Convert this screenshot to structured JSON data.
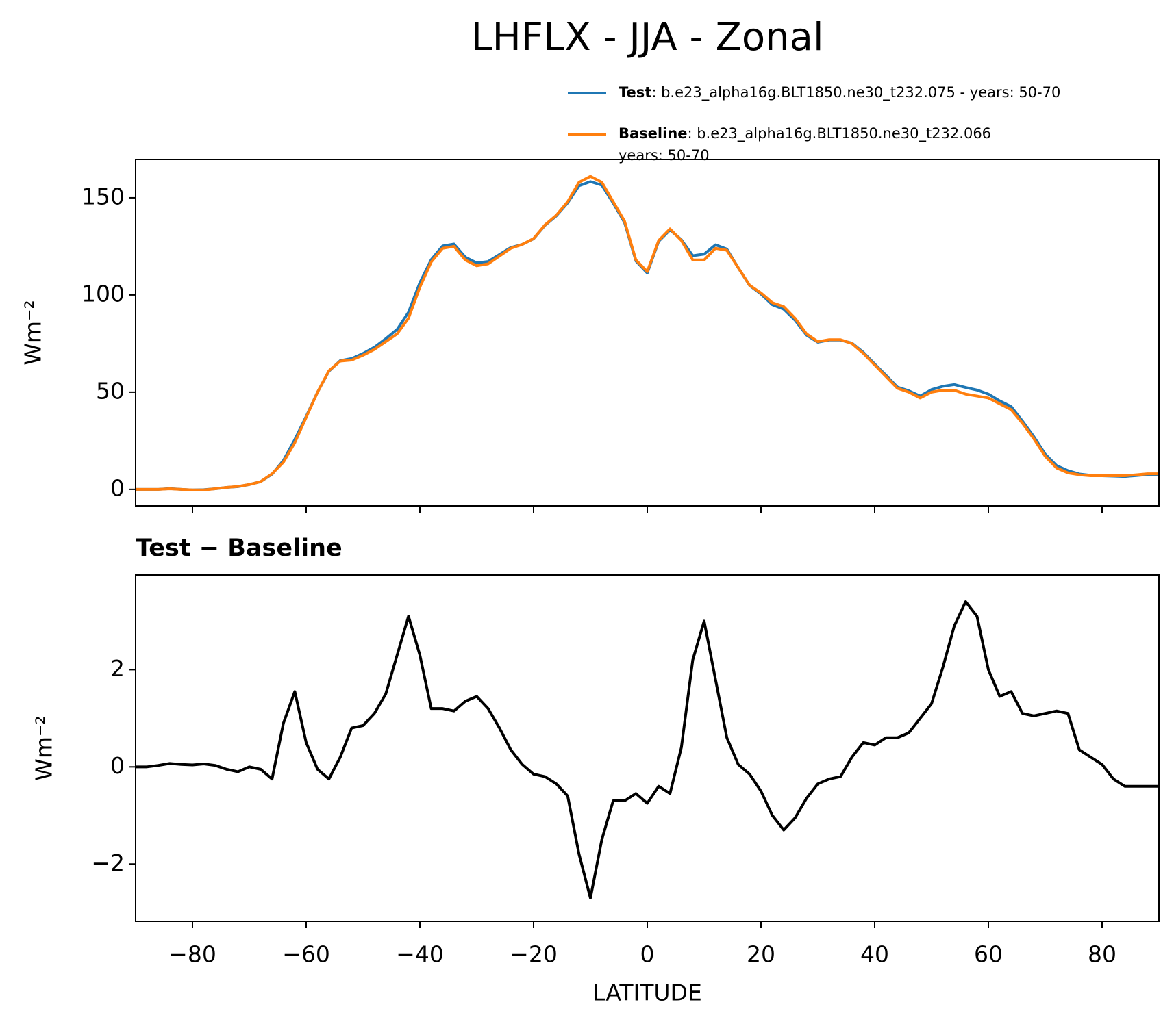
{
  "chart_data": [
    {
      "type": "line",
      "title": "LHFLX - JJA - Zonal",
      "ylabel": "Wm⁻²",
      "x": [
        -90,
        -88,
        -86,
        -84,
        -82,
        -80,
        -78,
        -76,
        -74,
        -72,
        -70,
        -68,
        -66,
        -64,
        -62,
        -60,
        -58,
        -56,
        -54,
        -52,
        -50,
        -48,
        -46,
        -44,
        -42,
        -40,
        -38,
        -36,
        -34,
        -32,
        -30,
        -28,
        -26,
        -24,
        -22,
        -20,
        -18,
        -16,
        -14,
        -12,
        -10,
        -8,
        -6,
        -4,
        -2,
        0,
        2,
        4,
        6,
        8,
        10,
        12,
        14,
        16,
        18,
        20,
        22,
        24,
        26,
        28,
        30,
        32,
        34,
        36,
        38,
        40,
        42,
        44,
        46,
        48,
        50,
        52,
        54,
        56,
        58,
        60,
        62,
        64,
        66,
        68,
        70,
        72,
        74,
        76,
        78,
        80,
        82,
        84,
        86,
        88,
        90
      ],
      "series": [
        {
          "name": "Test",
          "description": [
            ": b.e23_alpha16g.BLT1850.ne30_t232.075 - years: 50-70"
          ],
          "color": "#1f77b4",
          "values": [
            0,
            0,
            0,
            0.4,
            0,
            -0.3,
            -0.2,
            0.3,
            1,
            1.4,
            2.5,
            4,
            7.8,
            14.9,
            25.6,
            37.5,
            50,
            60.8,
            66.2,
            67.3,
            69.9,
            73.1,
            77.5,
            82.3,
            91.1,
            106.3,
            118.2,
            125.2,
            126.2,
            119.4,
            116.5,
            117.2,
            120.8,
            124.4,
            126,
            128.9,
            135.8,
            140.7,
            147.4,
            156.2,
            158.3,
            156.5,
            147.3,
            137.3,
            117.5,
            111.3,
            127.6,
            133.5,
            128.4,
            120.2,
            121,
            125.8,
            123.6,
            114,
            104.9,
            100.5,
            95,
            92.7,
            87,
            79.4,
            75.7,
            76.8,
            76.8,
            75.2,
            70.5,
            64.5,
            58.6,
            52.6,
            50.7,
            48,
            51.3,
            53,
            53.9,
            52.4,
            51.1,
            49,
            45.5,
            42.6,
            35.1,
            27.1,
            18.1,
            12.2,
            9.6,
            7.9,
            7.2,
            7,
            6.8,
            6.6,
            7.1,
            7.6,
            7.6
          ]
        },
        {
          "name": "Baseline",
          "description": [
            ": b.e23_alpha16g.BLT1850.ne30_t232.066",
            "years: 50-70"
          ],
          "color": "#ff7f0e",
          "values": [
            0,
            0,
            0,
            0.3,
            0,
            -0.3,
            -0.3,
            0.3,
            1,
            1.5,
            2.5,
            4,
            8,
            14,
            24,
            37,
            50,
            61,
            66,
            66.5,
            69,
            72,
            76,
            80,
            88,
            104,
            117,
            124,
            125,
            118,
            115,
            116,
            120,
            124,
            126,
            129,
            136,
            141,
            148,
            158,
            161,
            158,
            148,
            138,
            118,
            112,
            128,
            134,
            128,
            118,
            118,
            124,
            123,
            114,
            105,
            101,
            96,
            94,
            88,
            80,
            76,
            77,
            77,
            75,
            70,
            64,
            58,
            52,
            50,
            47,
            50,
            51,
            51,
            49,
            48,
            47,
            44,
            41,
            34,
            26,
            17,
            11,
            8.5,
            7.5,
            7,
            7,
            7,
            7,
            7.5,
            8,
            8
          ]
        }
      ],
      "xlim": [
        -90,
        90
      ],
      "xticks": [
        -80,
        -60,
        -40,
        -20,
        0,
        20,
        40,
        60,
        80
      ],
      "ylim": [
        -8.5,
        169.7
      ],
      "yticks": [
        0,
        50,
        100,
        150
      ]
    },
    {
      "type": "line",
      "title": "Test − Baseline",
      "xlabel": "LATITUDE",
      "ylabel": "Wm⁻²",
      "x": [
        -90,
        -88,
        -86,
        -84,
        -82,
        -80,
        -78,
        -76,
        -74,
        -72,
        -70,
        -68,
        -66,
        -64,
        -62,
        -60,
        -58,
        -56,
        -54,
        -52,
        -50,
        -48,
        -46,
        -44,
        -42,
        -40,
        -38,
        -36,
        -34,
        -32,
        -30,
        -28,
        -26,
        -24,
        -22,
        -20,
        -18,
        -16,
        -14,
        -12,
        -10,
        -8,
        -6,
        -4,
        -2,
        0,
        2,
        4,
        6,
        8,
        10,
        12,
        14,
        16,
        18,
        20,
        22,
        24,
        26,
        28,
        30,
        32,
        34,
        36,
        38,
        40,
        42,
        44,
        46,
        48,
        50,
        52,
        54,
        56,
        58,
        60,
        62,
        64,
        66,
        68,
        70,
        72,
        74,
        76,
        78,
        80,
        82,
        84,
        86,
        88,
        90
      ],
      "series": [
        {
          "color": "#000000",
          "values": [
            0,
            0,
            0.03,
            0.07,
            0.05,
            0.04,
            0.06,
            0.03,
            -0.05,
            -0.1,
            0,
            -0.05,
            -0.25,
            0.9,
            1.55,
            0.5,
            -0.05,
            -0.25,
            0.2,
            0.8,
            0.85,
            1.1,
            1.5,
            2.3,
            3.1,
            2.3,
            1.2,
            1.2,
            1.15,
            1.35,
            1.45,
            1.2,
            0.8,
            0.35,
            0.05,
            -0.15,
            -0.2,
            -0.35,
            -0.6,
            -1.8,
            -2.7,
            -1.5,
            -0.7,
            -0.7,
            -0.55,
            -0.75,
            -0.4,
            -0.55,
            0.4,
            2.2,
            3.0,
            1.8,
            0.6,
            0.05,
            -0.15,
            -0.5,
            -1.0,
            -1.3,
            -1.05,
            -0.65,
            -0.35,
            -0.25,
            -0.2,
            0.2,
            0.5,
            0.45,
            0.6,
            0.6,
            0.7,
            1.0,
            1.3,
            2.05,
            2.9,
            3.4,
            3.1,
            2.0,
            1.45,
            1.55,
            1.1,
            1.05,
            1.1,
            1.15,
            1.1,
            0.35,
            0.2,
            0.05,
            -0.25,
            -0.4,
            -0.4,
            -0.4,
            -0.4
          ]
        }
      ],
      "xlim": [
        -90,
        90
      ],
      "xticks": [
        {
          "value": -80,
          "label": "−80"
        },
        {
          "value": -60,
          "label": "−60"
        },
        {
          "value": -40,
          "label": "−40"
        },
        {
          "value": -20,
          "label": "−20"
        },
        0,
        20,
        40,
        60,
        80
      ],
      "ylim": [
        -3.18,
        3.95
      ],
      "yticks": [
        {
          "value": -2,
          "label": "−2"
        },
        0,
        2
      ]
    }
  ]
}
